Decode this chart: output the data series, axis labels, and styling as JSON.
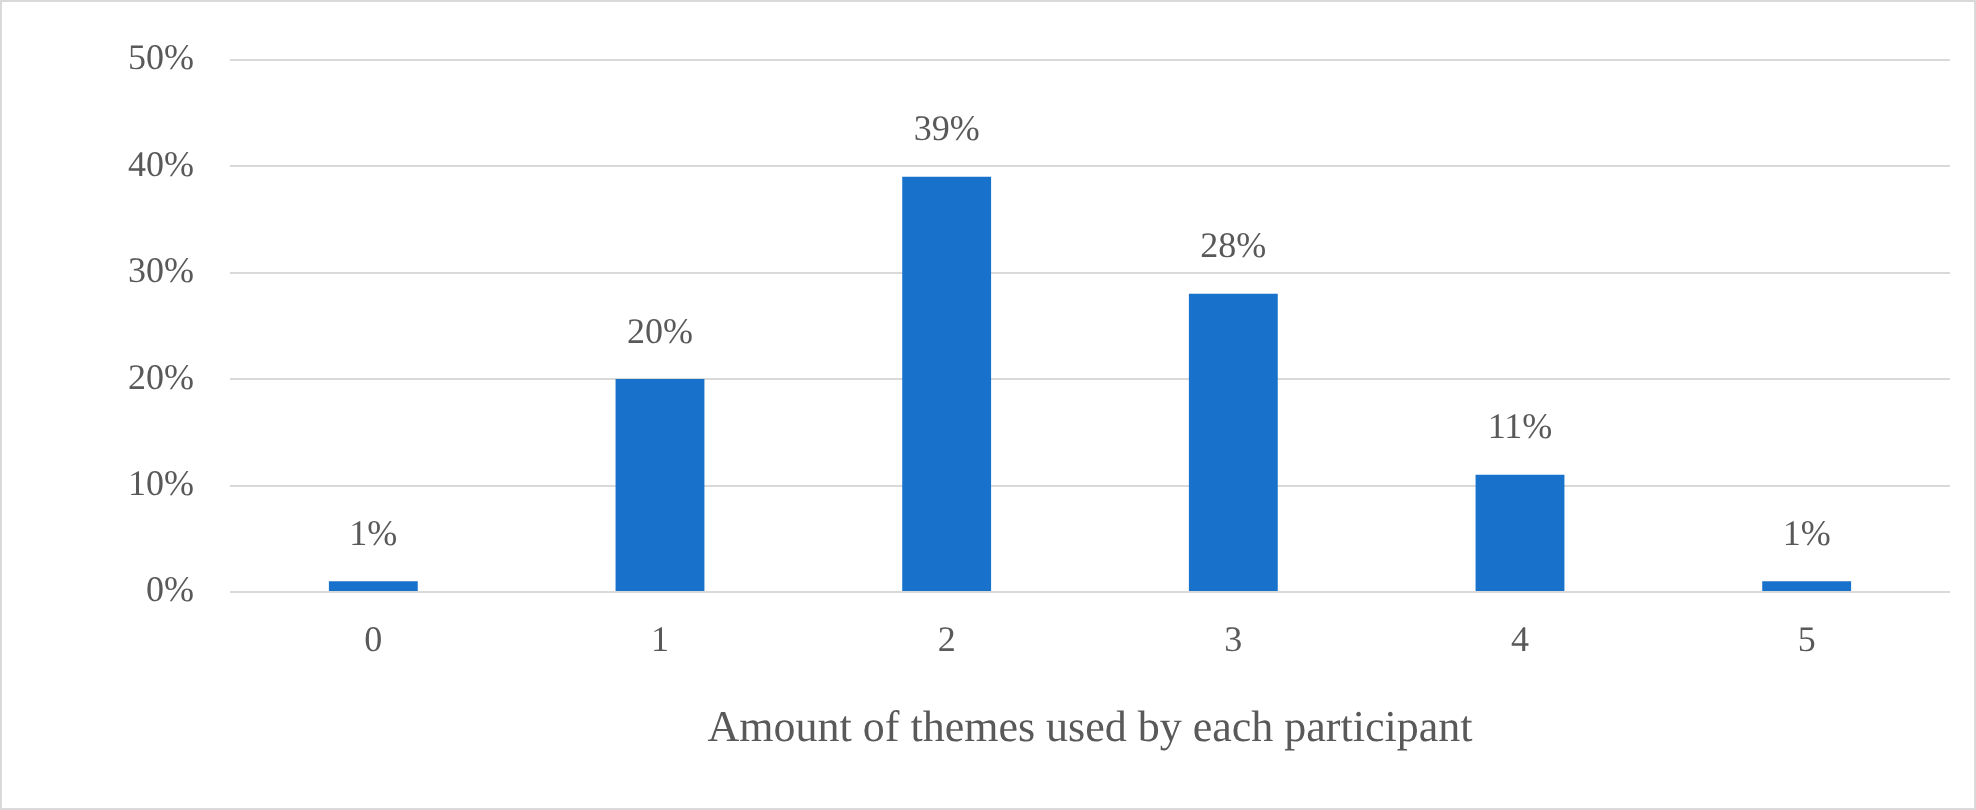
{
  "chart_data": {
    "type": "bar",
    "xlabel": "Amount of themes used by each participant",
    "categories": [
      "0",
      "1",
      "2",
      "3",
      "4",
      "5"
    ],
    "values": [
      1,
      20,
      39,
      28,
      11,
      1
    ],
    "value_labels": [
      "1%",
      "20%",
      "39%",
      "28%",
      "11%",
      "1%"
    ],
    "color": "#1872cc",
    "ylim": [
      0,
      50
    ],
    "yticks": [
      {
        "value": 0,
        "label": "0%"
      },
      {
        "value": 10,
        "label": "10%"
      },
      {
        "value": 20,
        "label": "20%"
      },
      {
        "value": 30,
        "label": "30%"
      },
      {
        "value": 40,
        "label": "40%"
      },
      {
        "value": 50,
        "label": "50%"
      }
    ],
    "grid": "y",
    "legend": false
  }
}
